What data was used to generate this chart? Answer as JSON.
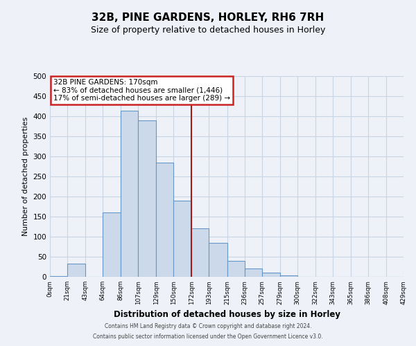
{
  "title": "32B, PINE GARDENS, HORLEY, RH6 7RH",
  "subtitle": "Size of property relative to detached houses in Horley",
  "xlabel": "Distribution of detached houses by size in Horley",
  "ylabel": "Number of detached properties",
  "bin_labels": [
    "0sqm",
    "21sqm",
    "43sqm",
    "64sqm",
    "86sqm",
    "107sqm",
    "129sqm",
    "150sqm",
    "172sqm",
    "193sqm",
    "215sqm",
    "236sqm",
    "257sqm",
    "279sqm",
    "300sqm",
    "322sqm",
    "343sqm",
    "365sqm",
    "386sqm",
    "408sqm",
    "429sqm"
  ],
  "bin_edges": [
    0,
    21,
    43,
    64,
    86,
    107,
    129,
    150,
    172,
    193,
    215,
    236,
    257,
    279,
    300,
    322,
    343,
    365,
    386,
    408,
    429
  ],
  "bar_heights": [
    2,
    33,
    0,
    160,
    413,
    390,
    285,
    190,
    120,
    85,
    40,
    20,
    10,
    3,
    0,
    0,
    0,
    0,
    0,
    0
  ],
  "bar_color": "#ccd9ea",
  "bar_edge_color": "#6496c8",
  "vline_x": 172,
  "vline_color": "#9b1c1c",
  "annotation_title": "32B PINE GARDENS: 170sqm",
  "annotation_line1": "← 83% of detached houses are smaller (1,446)",
  "annotation_line2": "17% of semi-detached houses are larger (289) →",
  "annotation_box_color": "#ffffff",
  "annotation_box_edge": "#cc2222",
  "ylim": [
    0,
    500
  ],
  "xlim": [
    0,
    429
  ],
  "yticks": [
    0,
    50,
    100,
    150,
    200,
    250,
    300,
    350,
    400,
    450,
    500
  ],
  "background_color": "#eef2f8",
  "grid_color": "#c8d4e4",
  "title_fontsize": 11,
  "subtitle_fontsize": 9,
  "footer1": "Contains HM Land Registry data © Crown copyright and database right 2024.",
  "footer2": "Contains public sector information licensed under the Open Government Licence v3.0."
}
